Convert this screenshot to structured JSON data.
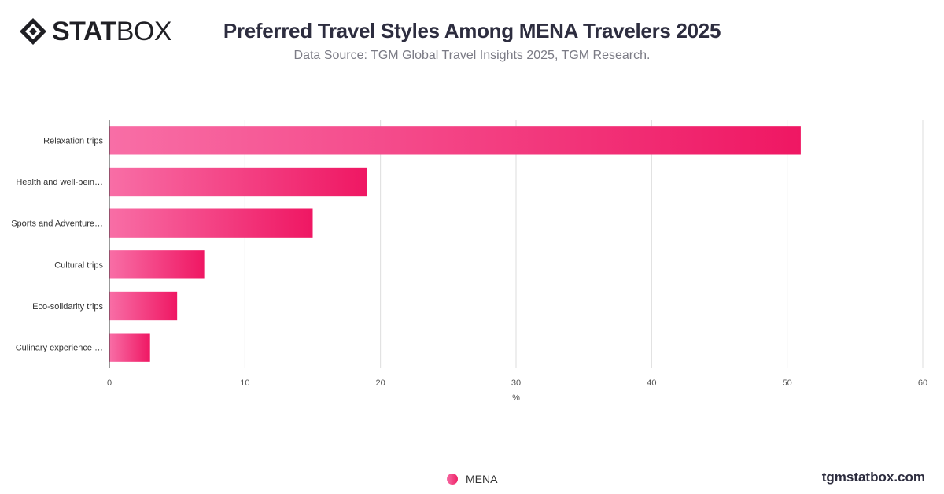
{
  "brand": {
    "logo_bold": "STAT",
    "logo_light": "BOX"
  },
  "title": "Preferred Travel Styles Among MENA Travelers 2025",
  "subtitle": "Data Source: TGM Global Travel Insights 2025, TGM Research.",
  "footer_url": "tgmstatbox.com",
  "colors": {
    "bar_start": "#f86ea6",
    "bar_end": "#ef1763",
    "grid": "#dddddd",
    "axis": "#333333"
  },
  "chart_data": {
    "type": "bar",
    "orientation": "horizontal",
    "categories": [
      "Relaxation trips",
      "Health and well-bein…",
      "Sports and Adventure…",
      "Cultural trips",
      "Eco-solidarity trips",
      "Culinary experience …"
    ],
    "series": [
      {
        "name": "MENA",
        "values": [
          51,
          19,
          15,
          7,
          5,
          3
        ]
      }
    ],
    "xlabel": "%",
    "ylabel": "",
    "xlim": [
      0,
      60
    ],
    "xticks": [
      0,
      10,
      20,
      30,
      40,
      50,
      60
    ],
    "grid": true,
    "legend": "bottom-center"
  }
}
